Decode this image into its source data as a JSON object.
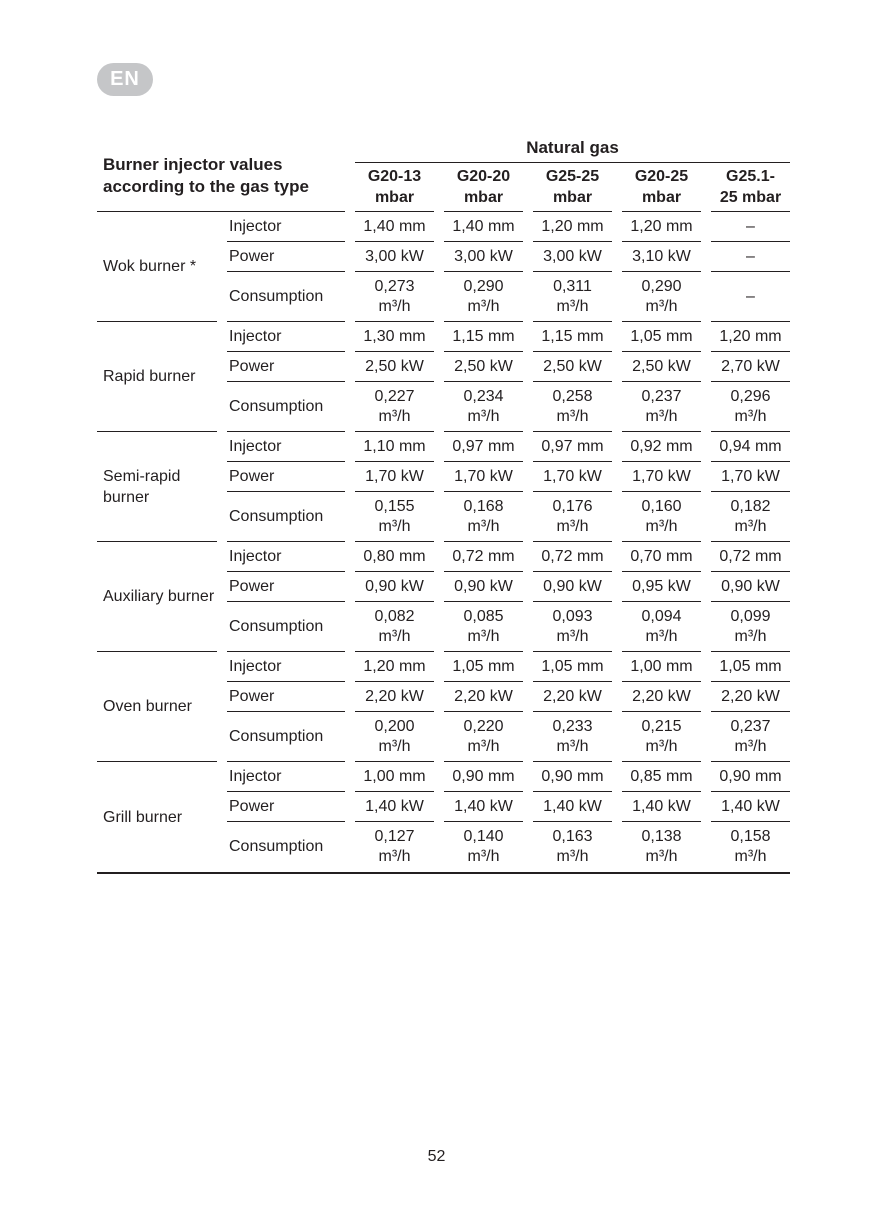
{
  "page": {
    "language_badge": "EN",
    "page_number": "52"
  },
  "colors": {
    "text": "#231f20",
    "rule": "#231f20",
    "badge_background": "#c5c6c8",
    "badge_text": "#ffffff"
  },
  "table": {
    "title": "Burner injector values according to the gas type",
    "group_header": "Natural gas",
    "columns": [
      "G20-13\nmbar",
      "G20-20\nmbar",
      "G25-25\nmbar",
      "G20-25\nmbar",
      "G25.1-\n25 mbar"
    ],
    "row_labels": [
      "Injector",
      "Power",
      "Consumption"
    ],
    "missing_value": "–",
    "burners": [
      {
        "name": "Wok burner *",
        "injector": [
          "1,40 mm",
          "1,40 mm",
          "1,20 mm",
          "1,20 mm",
          "–"
        ],
        "power": [
          "3,00 kW",
          "3,00 kW",
          "3,00 kW",
          "3,10 kW",
          "–"
        ],
        "consumption": [
          "0,273\nm³/h",
          "0,290\nm³/h",
          "0,311\nm³/h",
          "0,290\nm³/h",
          "–"
        ]
      },
      {
        "name": "Rapid burner",
        "injector": [
          "1,30 mm",
          "1,15 mm",
          "1,15 mm",
          "1,05 mm",
          "1,20 mm"
        ],
        "power": [
          "2,50 kW",
          "2,50 kW",
          "2,50 kW",
          "2,50 kW",
          "2,70 kW"
        ],
        "consumption": [
          "0,227\nm³/h",
          "0,234\nm³/h",
          "0,258\nm³/h",
          "0,237\nm³/h",
          "0,296\nm³/h"
        ]
      },
      {
        "name": "Semi-rapid burner",
        "injector": [
          "1,10 mm",
          "0,97 mm",
          "0,97 mm",
          "0,92 mm",
          "0,94 mm"
        ],
        "power": [
          "1,70 kW",
          "1,70 kW",
          "1,70 kW",
          "1,70 kW",
          "1,70 kW"
        ],
        "consumption": [
          "0,155\nm³/h",
          "0,168\nm³/h",
          "0,176\nm³/h",
          "0,160\nm³/h",
          "0,182\nm³/h"
        ]
      },
      {
        "name": "Auxiliary burner",
        "injector": [
          "0,80 mm",
          "0,72 mm",
          "0,72 mm",
          "0,70 mm",
          "0,72 mm"
        ],
        "power": [
          "0,90 kW",
          "0,90 kW",
          "0,90 kW",
          "0,95 kW",
          "0,90 kW"
        ],
        "consumption": [
          "0,082\nm³/h",
          "0,085\nm³/h",
          "0,093\nm³/h",
          "0,094\nm³/h",
          "0,099\nm³/h"
        ]
      },
      {
        "name": "Oven burner",
        "injector": [
          "1,20 mm",
          "1,05 mm",
          "1,05 mm",
          "1,00 mm",
          "1,05 mm"
        ],
        "power": [
          "2,20 kW",
          "2,20 kW",
          "2,20 kW",
          "2,20 kW",
          "2,20 kW"
        ],
        "consumption": [
          "0,200\nm³/h",
          "0,220\nm³/h",
          "0,233\nm³/h",
          "0,215\nm³/h",
          "0,237\nm³/h"
        ]
      },
      {
        "name": "Grill burner",
        "injector": [
          "1,00 mm",
          "0,90 mm",
          "0,90 mm",
          "0,85 mm",
          "0,90 mm"
        ],
        "power": [
          "1,40 kW",
          "1,40 kW",
          "1,40 kW",
          "1,40 kW",
          "1,40 kW"
        ],
        "consumption": [
          "0,127\nm³/h",
          "0,140\nm³/h",
          "0,163\nm³/h",
          "0,138\nm³/h",
          "0,158\nm³/h"
        ]
      }
    ]
  }
}
